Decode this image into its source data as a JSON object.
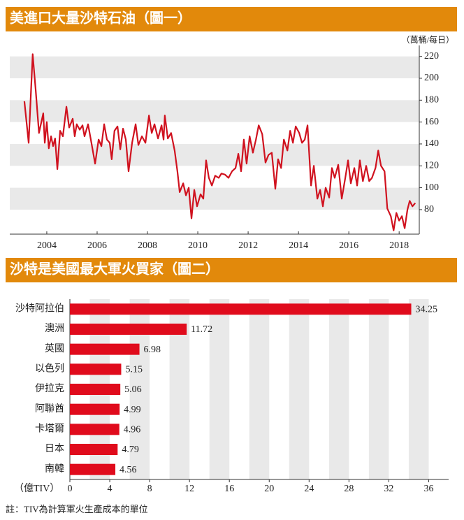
{
  "chart_data": [
    {
      "type": "line",
      "title": "美進口大量沙特石油（圖一）",
      "y_label": "（萬桶/每日）",
      "color": "#d0121f",
      "grid": "bands",
      "xlim": [
        2002.53,
        2018.8
      ],
      "xticks": [
        2004,
        2006,
        2008,
        2010,
        2012,
        2014,
        2016,
        2018
      ],
      "ylim": [
        57.6,
        230
      ],
      "yticks": [
        80,
        100,
        120,
        140,
        160,
        180,
        200,
        220
      ],
      "x": [
        2003.11,
        2003.28,
        2003.44,
        2003.56,
        2003.69,
        2003.86,
        2003.92,
        2004.0,
        2004.08,
        2004.17,
        2004.25,
        2004.33,
        2004.42,
        2004.53,
        2004.64,
        2004.78,
        2004.89,
        2005.03,
        2005.11,
        2005.19,
        2005.31,
        2005.42,
        2005.5,
        2005.64,
        2005.75,
        2005.92,
        2006.06,
        2006.17,
        2006.28,
        2006.39,
        2006.5,
        2006.58,
        2006.69,
        2006.81,
        2006.92,
        2007.03,
        2007.14,
        2007.25,
        2007.39,
        2007.53,
        2007.64,
        2007.78,
        2007.92,
        2008.06,
        2008.17,
        2008.28,
        2008.42,
        2008.56,
        2008.64,
        2008.69,
        2008.81,
        2008.94,
        2009.08,
        2009.19,
        2009.28,
        2009.42,
        2009.53,
        2009.64,
        2009.75,
        2009.86,
        2009.97,
        2010.11,
        2010.22,
        2010.33,
        2010.44,
        2010.56,
        2010.69,
        2010.83,
        2010.94,
        2011.08,
        2011.22,
        2011.36,
        2011.5,
        2011.61,
        2011.72,
        2011.83,
        2011.94,
        2012.06,
        2012.19,
        2012.31,
        2012.42,
        2012.56,
        2012.69,
        2012.81,
        2012.94,
        2013.08,
        2013.19,
        2013.31,
        2013.42,
        2013.56,
        2013.67,
        2013.78,
        2013.89,
        2014.03,
        2014.14,
        2014.25,
        2014.36,
        2014.5,
        2014.61,
        2014.75,
        2014.86,
        2014.97,
        2015.08,
        2015.22,
        2015.33,
        2015.44,
        2015.58,
        2015.72,
        2015.86,
        2015.97,
        2016.08,
        2016.22,
        2016.33,
        2016.44,
        2016.56,
        2016.69,
        2016.81,
        2016.92,
        2017.06,
        2017.17,
        2017.28,
        2017.42,
        2017.53,
        2017.67,
        2017.78,
        2017.89,
        2018.0,
        2018.11,
        2018.22,
        2018.33,
        2018.42,
        2018.53,
        2018.64
      ],
      "values": [
        179,
        141,
        222,
        189,
        150,
        168,
        141,
        160,
        136,
        147,
        138,
        145,
        117,
        152,
        147,
        174,
        155,
        163,
        147,
        158,
        153,
        157,
        147,
        158,
        144,
        122,
        144,
        138,
        158,
        144,
        141,
        126,
        152,
        156,
        135,
        154,
        144,
        115,
        141,
        158,
        139,
        147,
        141,
        166,
        150,
        158,
        145,
        157,
        144,
        166,
        145,
        150,
        134,
        115,
        96,
        104,
        93,
        100,
        72,
        98,
        83,
        94,
        90,
        125,
        109,
        102,
        111,
        109,
        113,
        112,
        109,
        115,
        118,
        131,
        115,
        144,
        122,
        147,
        132,
        144,
        157,
        149,
        123,
        130,
        132,
        99,
        126,
        118,
        144,
        134,
        152,
        141,
        156,
        150,
        141,
        144,
        157,
        102,
        120,
        90,
        98,
        83,
        100,
        91,
        118,
        109,
        121,
        90,
        109,
        125,
        104,
        118,
        102,
        125,
        106,
        120,
        106,
        109,
        118,
        134,
        120,
        115,
        81,
        74,
        61,
        77,
        70,
        74,
        63,
        80,
        88,
        83,
        86
      ]
    },
    {
      "type": "barh",
      "title": "沙特是美國最大軍火買家（圖二）",
      "x_label": "（億TIV）",
      "note": "註：TIV為計算軍火生產成本的單位",
      "color": "#e00b1c",
      "grid": "bands",
      "categories": [
        "沙特阿拉伯",
        "澳洲",
        "英國",
        "以色列",
        "伊拉克",
        "阿聯酋",
        "卡塔爾",
        "日本",
        "南韓"
      ],
      "values": [
        34.25,
        11.72,
        6.98,
        5.15,
        5.06,
        4.99,
        4.96,
        4.79,
        4.56
      ],
      "xlim": [
        0,
        38
      ],
      "xticks": [
        0,
        4,
        8,
        12,
        16,
        20,
        24,
        28,
        32,
        36
      ]
    }
  ]
}
